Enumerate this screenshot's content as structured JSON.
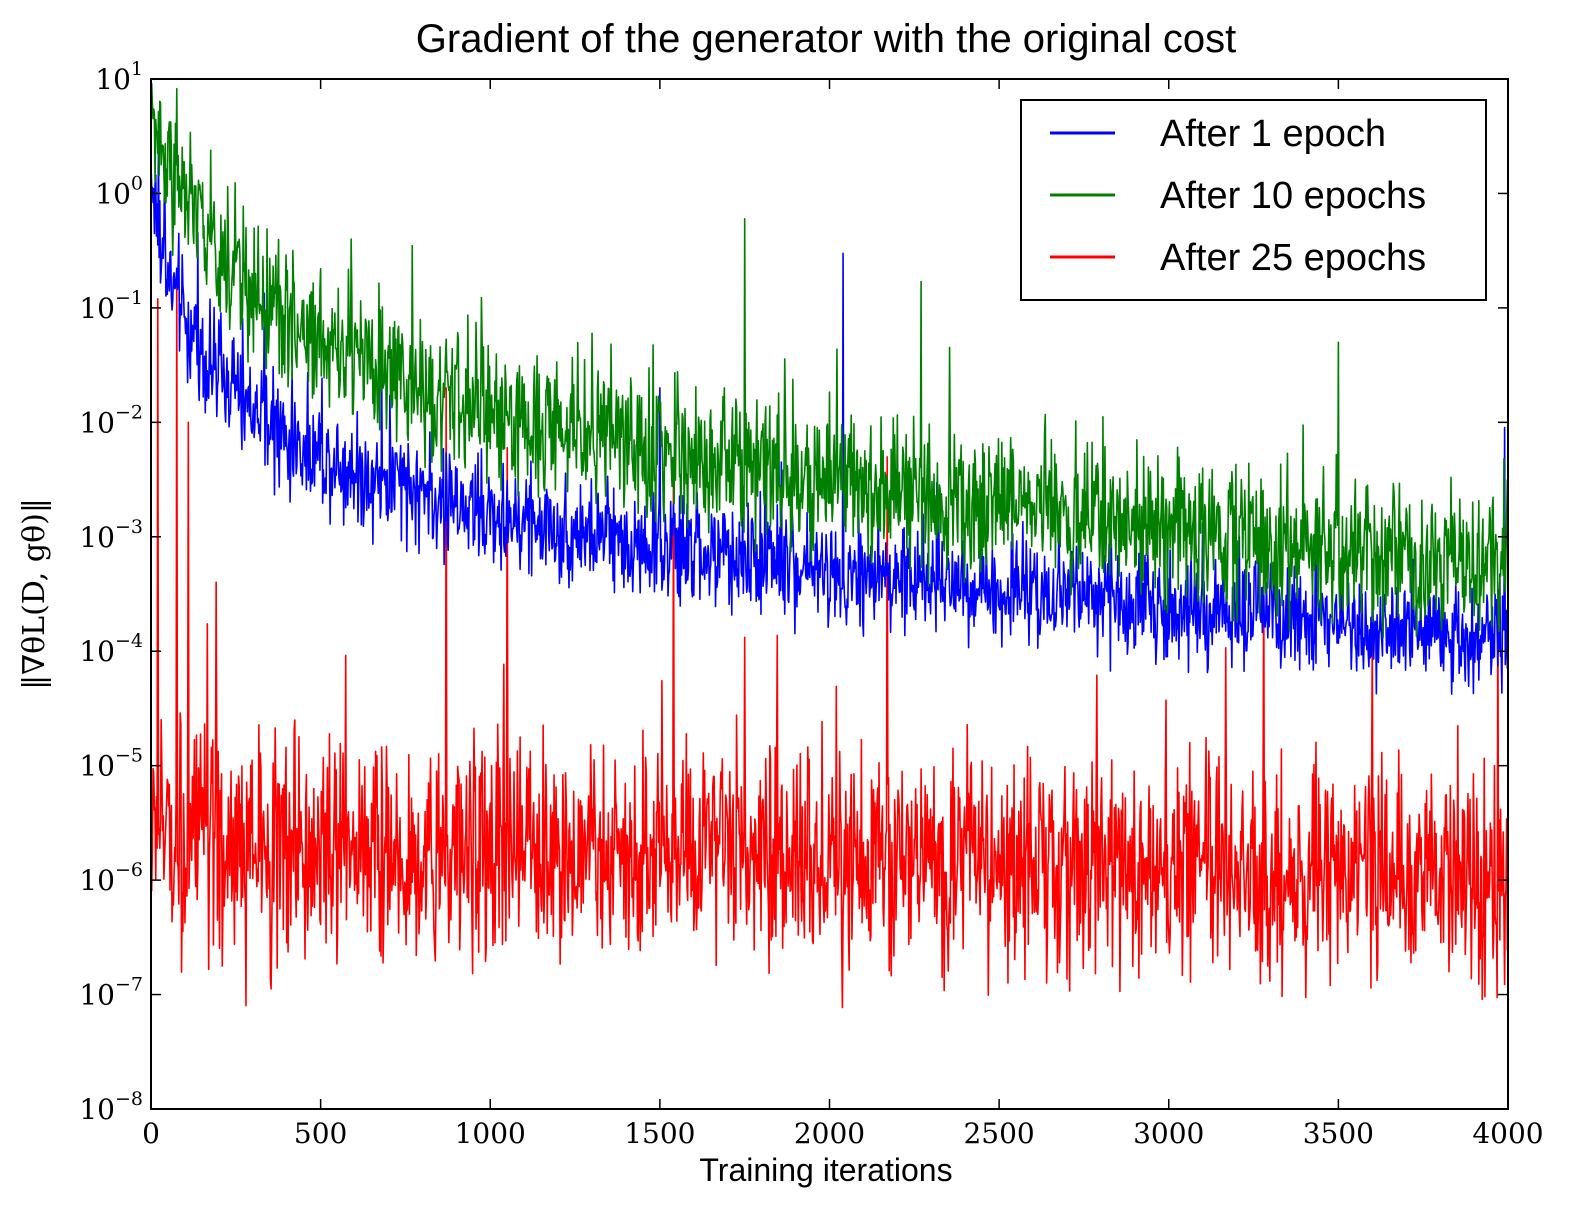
{
  "chart_data": {
    "type": "line",
    "title": "Gradient of the generator with the original cost",
    "xlabel": "Training iterations",
    "ylabel": "‖∇θL(D, gθ)‖",
    "xlim": [
      0,
      4000
    ],
    "ylim": [
      1e-08,
      10
    ],
    "y_scale": "log",
    "grid": false,
    "legend_position": "top-right",
    "x_ticks": [
      "0",
      "500",
      "1000",
      "1500",
      "2000",
      "2500",
      "3000",
      "3500",
      "4000"
    ],
    "y_ticks": [
      {
        "base": "10",
        "exp": "1"
      },
      {
        "base": "10",
        "exp": "0"
      },
      {
        "base": "10",
        "exp": "−1"
      },
      {
        "base": "10",
        "exp": "−2"
      },
      {
        "base": "10",
        "exp": "−3"
      },
      {
        "base": "10",
        "exp": "−4"
      },
      {
        "base": "10",
        "exp": "−5"
      },
      {
        "base": "10",
        "exp": "−6"
      },
      {
        "base": "10",
        "exp": "−7"
      },
      {
        "base": "10",
        "exp": "−8"
      }
    ],
    "series": [
      {
        "name": "After 1 epoch",
        "color": "#0000ff",
        "trend": {
          "x": [
            0,
            25,
            50,
            100,
            150,
            200,
            300,
            400,
            500,
            700,
            1000,
            1500,
            2000,
            2500,
            3000,
            3500,
            4000
          ],
          "y": [
            1.5,
            0.4,
            0.2,
            0.08,
            0.04,
            0.025,
            0.012,
            0.007,
            0.005,
            0.003,
            0.0015,
            0.0008,
            0.0005,
            0.00035,
            0.00025,
            0.00018,
            0.00013
          ]
        },
        "noise_decades": 0.35,
        "spikes": [
          [
            2040,
            0.3
          ],
          [
            3990,
            0.009
          ],
          [
            1500,
            0.02
          ],
          [
            680,
            0.025
          ]
        ]
      },
      {
        "name": "After 10 epochs",
        "color": "#007f00",
        "trend": {
          "x": [
            0,
            50,
            100,
            200,
            300,
            500,
            700,
            1000,
            1500,
            2000,
            2500,
            3000,
            3500,
            4000
          ],
          "y": [
            4,
            2,
            0.9,
            0.3,
            0.12,
            0.05,
            0.025,
            0.012,
            0.006,
            0.003,
            0.002,
            0.0012,
            0.0008,
            0.0005
          ]
        },
        "noise_decades": 0.45,
        "spikes": [
          [
            590,
            0.4
          ],
          [
            770,
            0.35
          ],
          [
            1750,
            0.6
          ],
          [
            2270,
            0.17
          ],
          [
            3500,
            0.05
          ],
          [
            1300,
            0.06
          ]
        ]
      },
      {
        "name": "After 25 epochs",
        "color": "#ff0000",
        "trend": {
          "x": [
            0,
            200,
            500,
            1000,
            1500,
            2000,
            2500,
            3000,
            3500,
            4000
          ],
          "y": [
            3e-06,
            2e-06,
            1.8e-06,
            1.8e-06,
            1.6e-06,
            1.5e-06,
            1.4e-06,
            1.3e-06,
            1.2e-06,
            1e-06
          ]
        },
        "noise_decades": 0.7,
        "spikes": [
          [
            20,
            0.12
          ],
          [
            75,
            0.2
          ],
          [
            110,
            0.01
          ],
          [
            870,
            0.02
          ],
          [
            1050,
            0.006
          ],
          [
            1540,
            0.004
          ],
          [
            2170,
            0.005
          ],
          [
            3280,
            0.0006
          ],
          [
            3970,
            0.0004
          ],
          [
            280,
            8e-08
          ]
        ]
      }
    ]
  }
}
